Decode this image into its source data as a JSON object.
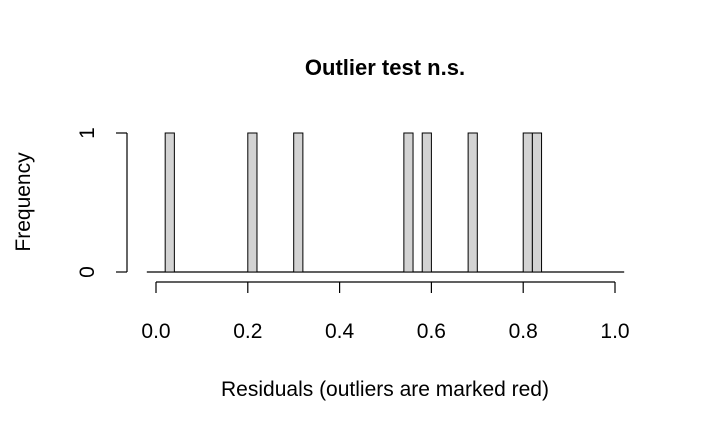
{
  "chart_data": {
    "type": "bar",
    "title": "Outlier test n.s.",
    "xlabel": "Residuals (outliers are marked red)",
    "ylabel": "Frequency",
    "xlim": [
      0,
      1
    ],
    "ylim": [
      0,
      1
    ],
    "x_ticks": [
      "0.0",
      "0.2",
      "0.4",
      "0.6",
      "0.8",
      "1.0"
    ],
    "y_ticks": [
      "0",
      "1"
    ],
    "bin_width": 0.02,
    "bars": [
      {
        "x_start": 0.02,
        "x_end": 0.04,
        "count": 1
      },
      {
        "x_start": 0.2,
        "x_end": 0.22,
        "count": 1
      },
      {
        "x_start": 0.3,
        "x_end": 0.32,
        "count": 1
      },
      {
        "x_start": 0.54,
        "x_end": 0.56,
        "count": 1
      },
      {
        "x_start": 0.58,
        "x_end": 0.6,
        "count": 1
      },
      {
        "x_start": 0.68,
        "x_end": 0.7,
        "count": 1
      },
      {
        "x_start": 0.8,
        "x_end": 0.82,
        "count": 1
      },
      {
        "x_start": 0.82,
        "x_end": 0.84,
        "count": 1
      }
    ],
    "bar_color": "#d3d3d3",
    "outlier_color": "#ff0000",
    "baseline_range": [
      -0.02,
      1.02
    ]
  }
}
